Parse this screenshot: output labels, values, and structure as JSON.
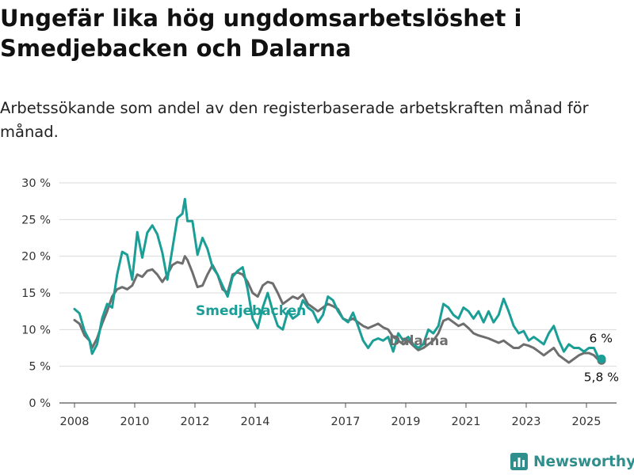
{
  "title": "Ungefär lika hög ungdomsarbetslöshet i Smedjebacken och Dalarna",
  "subtitle": "Arbetssökande som andel av den registerbaserade arbetskraften månad för månad.",
  "brand": "Newsworthy",
  "brand_icon": "bar-chart-icon",
  "colors": {
    "smedjebacken": "#1a9e96",
    "dalarna": "#6e6e6e",
    "grid": "#d9d9d9",
    "brand": "#2f8f8c"
  },
  "chart_data": {
    "type": "line",
    "title": "Ungefär lika hög ungdomsarbetslöshet i Smedjebacken och Dalarna",
    "subtitle": "Arbetssökande som andel av den registerbaserade arbetskraften månad för månad.",
    "ylim": [
      0,
      30
    ],
    "xlim": [
      "2007-07",
      "2026-01"
    ],
    "y_ticks": [
      0,
      5,
      10,
      15,
      20,
      25,
      30
    ],
    "y_tick_labels": [
      "0 %",
      "5 %",
      "10 %",
      "15 %",
      "20 %",
      "25 %",
      "30 %"
    ],
    "x_ticks": [
      "2008-01",
      "2010-01",
      "2012-01",
      "2014-01",
      "2017-01",
      "2019-01",
      "2021-01",
      "2023-01",
      "2025-01"
    ],
    "x_tick_labels": [
      "2008",
      "2010",
      "2012",
      "2014",
      "2017",
      "2019",
      "2021",
      "2023",
      "2025"
    ],
    "grid": "horizontal",
    "legend": "direct labels",
    "end_labels": {
      "smedjebacken": "6 %",
      "dalarna": "5,8 %"
    },
    "series": [
      {
        "name": "Smedjebacken",
        "color": "#1a9e96",
        "points": [
          [
            "2008-01",
            12.8
          ],
          [
            "2008-03",
            12.2
          ],
          [
            "2008-05",
            9.8
          ],
          [
            "2008-07",
            8.5
          ],
          [
            "2008-08",
            6.7
          ],
          [
            "2008-10",
            8.0
          ],
          [
            "2008-12",
            11.5
          ],
          [
            "2009-02",
            13.5
          ],
          [
            "2009-04",
            13.0
          ],
          [
            "2009-06",
            17.5
          ],
          [
            "2009-08",
            20.6
          ],
          [
            "2009-10",
            20.2
          ],
          [
            "2009-12",
            16.8
          ],
          [
            "2010-02",
            23.3
          ],
          [
            "2010-04",
            19.8
          ],
          [
            "2010-06",
            23.2
          ],
          [
            "2010-08",
            24.2
          ],
          [
            "2010-10",
            23.0
          ],
          [
            "2010-12",
            20.5
          ],
          [
            "2011-02",
            16.8
          ],
          [
            "2011-04",
            21.0
          ],
          [
            "2011-06",
            25.2
          ],
          [
            "2011-08",
            25.8
          ],
          [
            "2011-09",
            27.8
          ],
          [
            "2011-10",
            24.8
          ],
          [
            "2011-12",
            24.8
          ],
          [
            "2012-02",
            20.2
          ],
          [
            "2012-04",
            22.5
          ],
          [
            "2012-06",
            21.0
          ],
          [
            "2012-08",
            18.5
          ],
          [
            "2012-10",
            17.5
          ],
          [
            "2012-12",
            16.0
          ],
          [
            "2013-02",
            14.5
          ],
          [
            "2013-04",
            17.2
          ],
          [
            "2013-06",
            18.0
          ],
          [
            "2013-08",
            18.5
          ],
          [
            "2013-10",
            15.5
          ],
          [
            "2013-12",
            11.5
          ],
          [
            "2014-02",
            10.2
          ],
          [
            "2014-04",
            13.0
          ],
          [
            "2014-06",
            15.0
          ],
          [
            "2014-08",
            12.5
          ],
          [
            "2014-10",
            10.5
          ],
          [
            "2014-12",
            10.0
          ],
          [
            "2015-02",
            12.5
          ],
          [
            "2015-04",
            11.5
          ],
          [
            "2015-06",
            12.0
          ],
          [
            "2015-08",
            14.0
          ],
          [
            "2015-10",
            13.0
          ],
          [
            "2015-12",
            12.5
          ],
          [
            "2016-02",
            11.0
          ],
          [
            "2016-04",
            12.0
          ],
          [
            "2016-06",
            14.5
          ],
          [
            "2016-08",
            14.0
          ],
          [
            "2016-10",
            12.5
          ],
          [
            "2016-12",
            11.5
          ],
          [
            "2017-02",
            11.0
          ],
          [
            "2017-04",
            12.3
          ],
          [
            "2017-06",
            10.5
          ],
          [
            "2017-08",
            8.5
          ],
          [
            "2017-10",
            7.5
          ],
          [
            "2017-12",
            8.5
          ],
          [
            "2018-02",
            8.8
          ],
          [
            "2018-04",
            8.5
          ],
          [
            "2018-06",
            9.0
          ],
          [
            "2018-08",
            7.0
          ],
          [
            "2018-10",
            9.5
          ],
          [
            "2018-12",
            8.5
          ],
          [
            "2019-02",
            9.0
          ],
          [
            "2019-04",
            8.0
          ],
          [
            "2019-06",
            7.5
          ],
          [
            "2019-08",
            8.0
          ],
          [
            "2019-10",
            10.0
          ],
          [
            "2019-12",
            9.5
          ],
          [
            "2020-02",
            10.5
          ],
          [
            "2020-04",
            13.5
          ],
          [
            "2020-06",
            13.0
          ],
          [
            "2020-08",
            12.0
          ],
          [
            "2020-10",
            11.5
          ],
          [
            "2020-12",
            13.0
          ],
          [
            "2021-02",
            12.5
          ],
          [
            "2021-04",
            11.5
          ],
          [
            "2021-06",
            12.5
          ],
          [
            "2021-08",
            11.0
          ],
          [
            "2021-10",
            12.5
          ],
          [
            "2021-12",
            11.0
          ],
          [
            "2022-02",
            12.0
          ],
          [
            "2022-04",
            14.2
          ],
          [
            "2022-06",
            12.5
          ],
          [
            "2022-08",
            10.5
          ],
          [
            "2022-10",
            9.5
          ],
          [
            "2022-12",
            9.8
          ],
          [
            "2023-02",
            8.5
          ],
          [
            "2023-04",
            9.0
          ],
          [
            "2023-06",
            8.5
          ],
          [
            "2023-08",
            8.0
          ],
          [
            "2023-10",
            9.5
          ],
          [
            "2023-12",
            10.5
          ],
          [
            "2024-02",
            8.5
          ],
          [
            "2024-04",
            7.0
          ],
          [
            "2024-06",
            8.0
          ],
          [
            "2024-08",
            7.5
          ],
          [
            "2024-10",
            7.5
          ],
          [
            "2024-12",
            7.0
          ],
          [
            "2025-02",
            7.5
          ],
          [
            "2025-04",
            7.5
          ],
          [
            "2025-06",
            6.0
          ],
          [
            "2025-07",
            6.0
          ]
        ]
      },
      {
        "name": "Dalarna",
        "color": "#6e6e6e",
        "points": [
          [
            "2008-01",
            11.3
          ],
          [
            "2008-03",
            10.8
          ],
          [
            "2008-05",
            9.2
          ],
          [
            "2008-07",
            8.5
          ],
          [
            "2008-08",
            7.5
          ],
          [
            "2008-10",
            8.8
          ],
          [
            "2008-12",
            10.8
          ],
          [
            "2009-02",
            12.5
          ],
          [
            "2009-04",
            14.5
          ],
          [
            "2009-06",
            15.5
          ],
          [
            "2009-08",
            15.8
          ],
          [
            "2009-10",
            15.5
          ],
          [
            "2009-12",
            16.0
          ],
          [
            "2010-02",
            17.5
          ],
          [
            "2010-04",
            17.2
          ],
          [
            "2010-06",
            18.0
          ],
          [
            "2010-08",
            18.2
          ],
          [
            "2010-10",
            17.5
          ],
          [
            "2010-12",
            16.5
          ],
          [
            "2011-02",
            17.5
          ],
          [
            "2011-04",
            18.8
          ],
          [
            "2011-06",
            19.2
          ],
          [
            "2011-08",
            19.0
          ],
          [
            "2011-09",
            20.0
          ],
          [
            "2011-10",
            19.5
          ],
          [
            "2011-12",
            17.8
          ],
          [
            "2012-02",
            15.8
          ],
          [
            "2012-04",
            16.0
          ],
          [
            "2012-06",
            17.5
          ],
          [
            "2012-08",
            18.8
          ],
          [
            "2012-10",
            17.5
          ],
          [
            "2012-12",
            15.5
          ],
          [
            "2013-02",
            15.0
          ],
          [
            "2013-04",
            17.5
          ],
          [
            "2013-06",
            17.8
          ],
          [
            "2013-08",
            17.5
          ],
          [
            "2013-10",
            16.5
          ],
          [
            "2013-12",
            15.0
          ],
          [
            "2014-02",
            14.5
          ],
          [
            "2014-04",
            16.0
          ],
          [
            "2014-06",
            16.5
          ],
          [
            "2014-08",
            16.3
          ],
          [
            "2014-10",
            15.0
          ],
          [
            "2014-12",
            13.5
          ],
          [
            "2015-02",
            14.0
          ],
          [
            "2015-04",
            14.5
          ],
          [
            "2015-06",
            14.2
          ],
          [
            "2015-08",
            14.8
          ],
          [
            "2015-10",
            13.5
          ],
          [
            "2015-12",
            13.0
          ],
          [
            "2016-02",
            12.5
          ],
          [
            "2016-04",
            13.0
          ],
          [
            "2016-06",
            13.5
          ],
          [
            "2016-08",
            13.2
          ],
          [
            "2016-10",
            12.8
          ],
          [
            "2016-12",
            11.5
          ],
          [
            "2017-02",
            11.2
          ],
          [
            "2017-04",
            11.5
          ],
          [
            "2017-06",
            11.0
          ],
          [
            "2017-08",
            10.5
          ],
          [
            "2017-10",
            10.2
          ],
          [
            "2017-12",
            10.5
          ],
          [
            "2018-02",
            10.8
          ],
          [
            "2018-04",
            10.3
          ],
          [
            "2018-06",
            10.0
          ],
          [
            "2018-08",
            9.0
          ],
          [
            "2018-10",
            8.5
          ],
          [
            "2018-12",
            8.0
          ],
          [
            "2019-02",
            8.5
          ],
          [
            "2019-04",
            7.8
          ],
          [
            "2019-06",
            7.2
          ],
          [
            "2019-08",
            7.5
          ],
          [
            "2019-10",
            8.0
          ],
          [
            "2019-12",
            8.5
          ],
          [
            "2020-02",
            9.5
          ],
          [
            "2020-04",
            11.2
          ],
          [
            "2020-06",
            11.5
          ],
          [
            "2020-08",
            11.0
          ],
          [
            "2020-10",
            10.5
          ],
          [
            "2020-12",
            10.8
          ],
          [
            "2021-02",
            10.2
          ],
          [
            "2021-04",
            9.5
          ],
          [
            "2021-06",
            9.2
          ],
          [
            "2021-08",
            9.0
          ],
          [
            "2021-10",
            8.8
          ],
          [
            "2021-12",
            8.5
          ],
          [
            "2022-02",
            8.2
          ],
          [
            "2022-04",
            8.5
          ],
          [
            "2022-06",
            8.0
          ],
          [
            "2022-08",
            7.5
          ],
          [
            "2022-10",
            7.5
          ],
          [
            "2022-12",
            8.0
          ],
          [
            "2023-02",
            7.8
          ],
          [
            "2023-04",
            7.5
          ],
          [
            "2023-06",
            7.0
          ],
          [
            "2023-08",
            6.5
          ],
          [
            "2023-10",
            7.0
          ],
          [
            "2023-12",
            7.5
          ],
          [
            "2024-02",
            6.5
          ],
          [
            "2024-04",
            6.0
          ],
          [
            "2024-06",
            5.5
          ],
          [
            "2024-08",
            6.0
          ],
          [
            "2024-10",
            6.5
          ],
          [
            "2024-12",
            6.8
          ],
          [
            "2025-02",
            6.8
          ],
          [
            "2025-04",
            6.5
          ],
          [
            "2025-06",
            5.8
          ],
          [
            "2025-07",
            5.8
          ]
        ]
      }
    ]
  }
}
